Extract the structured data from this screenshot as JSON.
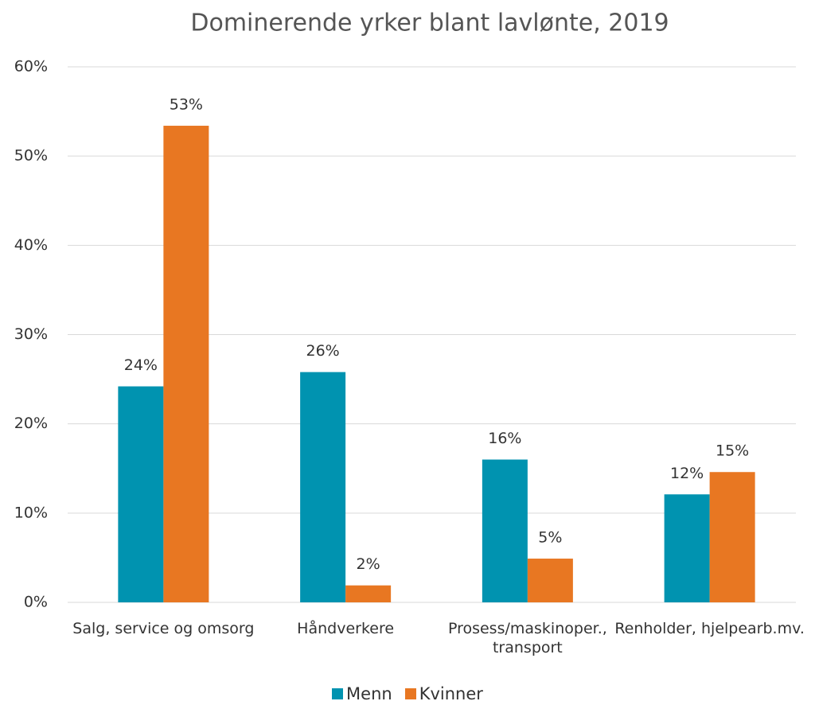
{
  "chart_data": {
    "type": "bar",
    "title": "Dominerende yrker blant lavlønte, 2019",
    "categories": [
      "Salg, service og omsorg",
      "Håndverkere",
      "Prosess/maskinoper., transport",
      "Renholder, hjelpearb.mv."
    ],
    "series": [
      {
        "name": "Menn",
        "color": "#0093b0",
        "values": [
          24.2,
          25.8,
          16.0,
          12.1
        ],
        "value_labels": [
          "24%",
          "26%",
          "16%",
          "12%"
        ]
      },
      {
        "name": "Kvinner",
        "color": "#e87722",
        "values": [
          53.4,
          1.9,
          4.9,
          14.6
        ],
        "value_labels": [
          "53%",
          "2%",
          "5%",
          "15%"
        ]
      }
    ],
    "ylim": [
      0,
      60
    ],
    "yticks": [
      {
        "value": 0,
        "label": "0%"
      },
      {
        "value": 10,
        "label": "10%"
      },
      {
        "value": 20,
        "label": "20%"
      },
      {
        "value": 30,
        "label": "30%"
      },
      {
        "value": 40,
        "label": "40%"
      },
      {
        "value": 50,
        "label": "50%"
      },
      {
        "value": 60,
        "label": "60%"
      }
    ],
    "grid": true,
    "legend": "bottom"
  }
}
